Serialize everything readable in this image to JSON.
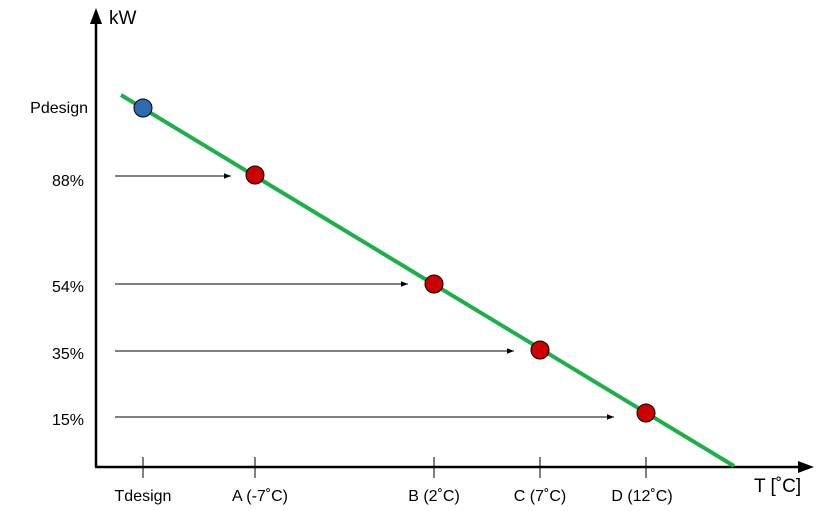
{
  "chart_data": {
    "type": "line",
    "y_axis_unit": "kW",
    "x_axis_unit": "T [˚C]",
    "x_tick_labels": [
      "Tdesign",
      "A (-7˚C)",
      "B (2˚C)",
      "C (7˚C)",
      "D (12˚C)"
    ],
    "y_tick_labels": [
      "Pdesign",
      "88%",
      "54%",
      "35%",
      "15%"
    ],
    "x_values": [
      -10,
      -7,
      2,
      7,
      12
    ],
    "y_values": [
      100,
      88,
      54,
      35,
      15
    ],
    "points": [
      {
        "x_label": "Tdesign",
        "y_label": "Pdesign",
        "x": -10,
        "y": 100,
        "color": "#2E6BB0"
      },
      {
        "x_label": "A (-7˚C)",
        "y_label": "88%",
        "x": -7,
        "y": 88,
        "color": "#CC0000"
      },
      {
        "x_label": "B (2˚C)",
        "y_label": "54%",
        "x": 2,
        "y": 54,
        "color": "#CC0000"
      },
      {
        "x_label": "C (7˚C)",
        "y_label": "35%",
        "x": 7,
        "y": 35,
        "color": "#CC0000"
      },
      {
        "x_label": "D (12˚C)",
        "y_label": "15%",
        "x": 12,
        "y": 15,
        "color": "#CC0000"
      }
    ],
    "line_color": "#1DB04A",
    "arrow_color": "#000000",
    "grid": false,
    "legend": "none"
  }
}
